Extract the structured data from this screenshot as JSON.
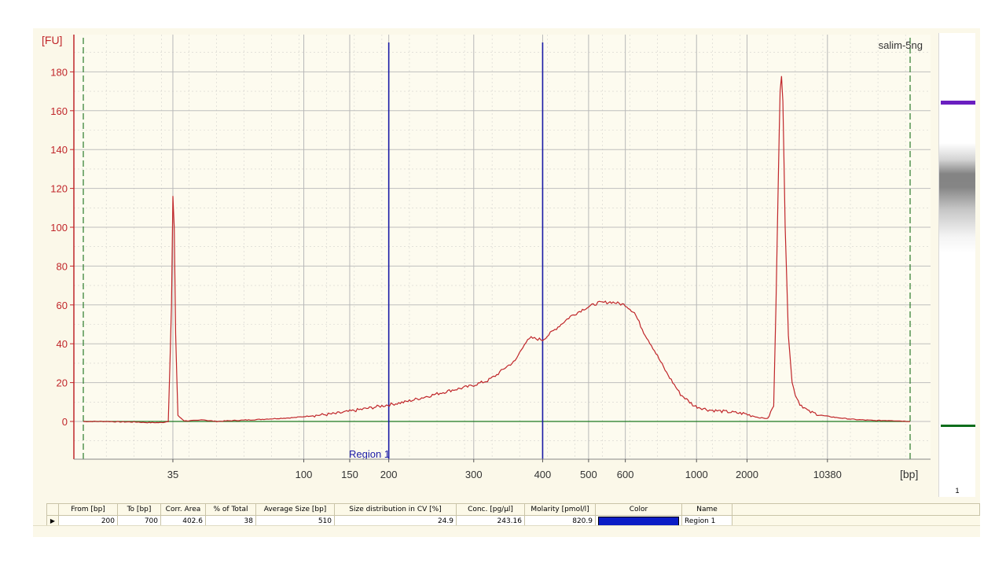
{
  "chart_data": {
    "type": "line",
    "title": "salim-5ng",
    "ylabel": "[FU]",
    "xlabel": "[bp]",
    "xscale": "non-linear sizing ladder",
    "grid": true,
    "ylim": [
      -20,
      190
    ],
    "y_ticks": [
      0,
      20,
      40,
      60,
      80,
      100,
      120,
      140,
      160,
      180
    ],
    "x_tick_labels": [
      "35",
      "100",
      "150",
      "200",
      "300",
      "400",
      "500",
      "600",
      "1000",
      "2000",
      "10380"
    ],
    "markers": [
      "35",
      "10380"
    ],
    "region": {
      "name": "Region 1",
      "from_bp": 200,
      "to_bp": 700
    },
    "series": [
      {
        "color": "#c0262a",
        "points": [
          [
            0.0,
            0
          ],
          [
            0.05,
            0
          ],
          [
            0.08,
            -0.2
          ],
          [
            0.12,
            -0.3
          ],
          [
            0.13,
            -0.5
          ],
          [
            0.15,
            -0.6
          ],
          [
            0.17,
            -0.6
          ],
          [
            0.185,
            0
          ],
          [
            0.192,
            60
          ],
          [
            0.195,
            116
          ],
          [
            0.198,
            100
          ],
          [
            0.201,
            45
          ],
          [
            0.206,
            3
          ],
          [
            0.22,
            0.3
          ],
          [
            0.25,
            0.5
          ],
          [
            0.26,
            1
          ],
          [
            0.27,
            0.5
          ],
          [
            0.29,
            0
          ],
          [
            0.33,
            0.5
          ],
          [
            0.38,
            1
          ],
          [
            0.42,
            1.5
          ],
          [
            0.46,
            2
          ],
          [
            0.5,
            3
          ],
          [
            0.55,
            4
          ],
          [
            0.6,
            6
          ],
          [
            0.65,
            8
          ],
          [
            0.7,
            10
          ],
          [
            0.75,
            13
          ],
          [
            0.8,
            16
          ],
          [
            0.84,
            18
          ],
          [
            0.88,
            21
          ],
          [
            0.9,
            24
          ],
          [
            0.92,
            28
          ],
          [
            0.94,
            31
          ],
          [
            0.96,
            40
          ],
          [
            0.975,
            43
          ],
          [
            1.0,
            42
          ],
          [
            1.03,
            48
          ],
          [
            1.06,
            54
          ],
          [
            1.09,
            58
          ],
          [
            1.12,
            61
          ],
          [
            1.15,
            61.5
          ],
          [
            1.18,
            60
          ],
          [
            1.2,
            56
          ],
          [
            1.22,
            46
          ],
          [
            1.24,
            38
          ],
          [
            1.27,
            25
          ],
          [
            1.3,
            14
          ],
          [
            1.33,
            8
          ],
          [
            1.36,
            6
          ],
          [
            1.4,
            5
          ],
          [
            1.44,
            4
          ],
          [
            1.47,
            2
          ],
          [
            1.49,
            1.5
          ],
          [
            1.503,
            8
          ],
          [
            1.508,
            60
          ],
          [
            1.513,
            125
          ],
          [
            1.517,
            170
          ],
          [
            1.52,
            178
          ],
          [
            1.523,
            165
          ],
          [
            1.528,
            100
          ],
          [
            1.535,
            45
          ],
          [
            1.543,
            20
          ],
          [
            1.55,
            14
          ],
          [
            1.56,
            9
          ],
          [
            1.58,
            5
          ],
          [
            1.61,
            3
          ],
          [
            1.64,
            2
          ],
          [
            1.68,
            1
          ],
          [
            1.72,
            0.5
          ],
          [
            1.76,
            0.5
          ],
          [
            1.8,
            0
          ]
        ]
      }
    ]
  },
  "gel": {
    "lane_number": "1"
  },
  "table": {
    "headers": [
      "From [bp]",
      "To [bp]",
      "Corr. Area",
      "% of Total",
      "Average Size [bp]",
      "Size distribution in CV [%]",
      "Conc. [pg/µl]",
      "Molarity [pmol/l]",
      "Color",
      "Name"
    ],
    "rows": [
      {
        "from": "200",
        "to": "700",
        "corr_area": "402.6",
        "pct_total": "38",
        "avg_size": "510",
        "cv": "24.9",
        "conc": "243.16",
        "molarity": "820.9",
        "color": "#0b1dc6",
        "name": "Region 1"
      }
    ]
  },
  "colors": {
    "trace": "#c0262a",
    "axis": "#c0262a",
    "region_line": "#1a1aa6",
    "baseline": "#1c7a20",
    "marker_line": "#2a7a2a",
    "grid": "#b8b8b8"
  }
}
